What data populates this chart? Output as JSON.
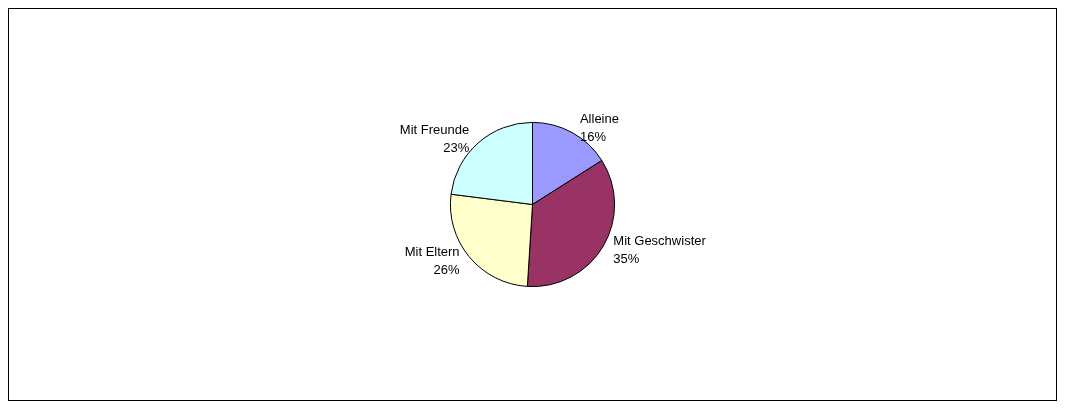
{
  "chart_data": {
    "type": "pie",
    "categories": [
      "Alleine",
      "Mit Geschwister",
      "Mit Eltern",
      "Mit Freunde"
    ],
    "values": [
      16,
      35,
      26,
      23
    ],
    "value_labels": [
      "16%",
      "35%",
      "26%",
      "23%"
    ],
    "colors": [
      "#9999ff",
      "#993366",
      "#ffffcc",
      "#ccffff"
    ],
    "legend": false
  }
}
